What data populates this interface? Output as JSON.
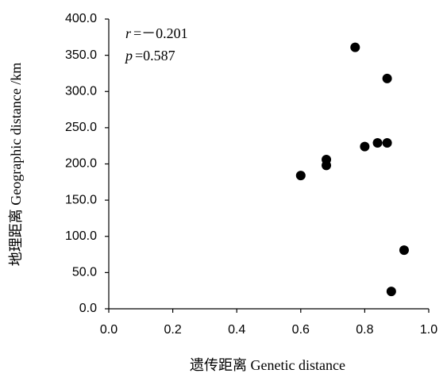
{
  "chart_data": {
    "type": "scatter",
    "x_label": "遗传距离 Genetic distance",
    "y_label": "地理距离 Geographic distance /km",
    "annotations": [
      {
        "symbol": "r",
        "text": "=－0.201"
      },
      {
        "symbol": "p",
        "text": "=0.587"
      }
    ],
    "series": [
      {
        "color": "#000000",
        "x": [
          0.6,
          0.68,
          0.68,
          0.77,
          0.8,
          0.84,
          0.87,
          0.87,
          0.883,
          0.923
        ],
        "values": [
          184,
          206,
          198,
          361,
          224,
          229,
          229,
          318,
          24,
          81
        ]
      }
    ],
    "xlim": [
      0,
      1
    ],
    "xticks": [
      {
        "value": 0,
        "label": "0.0"
      },
      0.2,
      0.4,
      0.6,
      0.8,
      {
        "value": 1,
        "label": "1.0"
      }
    ],
    "ylim": [
      0,
      400
    ],
    "yticks": [
      {
        "value": 0,
        "label": "0.0"
      },
      {
        "value": 50,
        "label": "50.0"
      },
      {
        "value": 100,
        "label": "100.0"
      },
      {
        "value": 150,
        "label": "150.0"
      },
      {
        "value": 200,
        "label": "200.0"
      },
      {
        "value": 250,
        "label": "250.0"
      },
      {
        "value": 300,
        "label": "300.0"
      },
      {
        "value": 350,
        "label": "350.0"
      },
      {
        "value": 400,
        "label": "400.0"
      }
    ],
    "grid": false
  }
}
